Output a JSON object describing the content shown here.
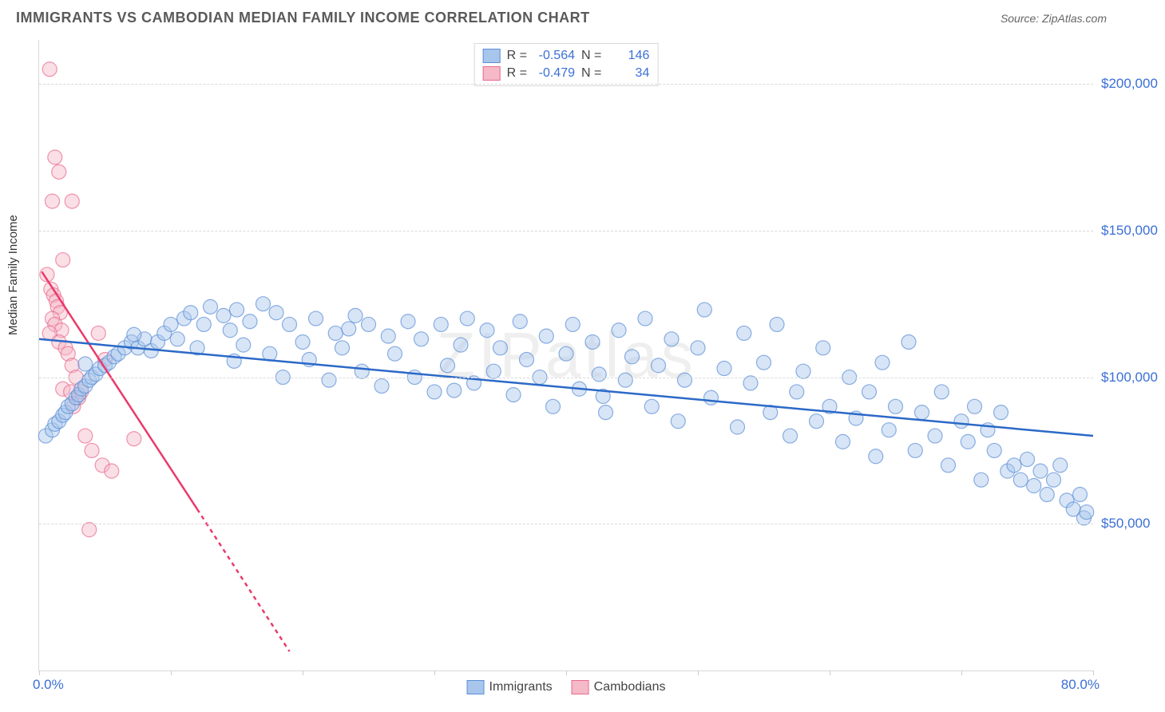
{
  "header": {
    "title": "IMMIGRANTS VS CAMBODIAN MEDIAN FAMILY INCOME CORRELATION CHART",
    "source": "Source: ZipAtlas.com"
  },
  "chart": {
    "type": "scatter",
    "ylabel": "Median Family Income",
    "watermark": "ZIPatlas",
    "background_color": "#ffffff",
    "grid_color": "#d8d8d8",
    "grid_dash": "4,4",
    "axis_color": "#d8d8d8",
    "xlim": [
      0,
      80
    ],
    "ylim": [
      0,
      215000
    ],
    "xtick_labels": {
      "left": "0.0%",
      "right": "80.0%"
    },
    "xtick_positions": [
      0,
      10,
      20,
      30,
      40,
      50,
      60,
      70,
      80
    ],
    "ytick_values": [
      50000,
      100000,
      150000,
      200000
    ],
    "ytick_labels": [
      "$50,000",
      "$100,000",
      "$150,000",
      "$200,000"
    ],
    "ytick_label_color": "#3b6fd6",
    "xtick_label_color": "#3b6fd6",
    "label_fontsize": 15,
    "tick_fontsize": 17,
    "title_fontsize": 18,
    "marker_radius": 9,
    "marker_opacity": 0.45,
    "marker_stroke_opacity": 0.7,
    "line_width": 2.5
  },
  "series": {
    "immigrants": {
      "label": "Immigrants",
      "color_fill": "#a8c5ec",
      "color_stroke": "#5b8fd6",
      "line_color": "#2b69c7",
      "r_label": "R =",
      "r_value": "-0.564",
      "n_label": "N =",
      "n_value": "146",
      "trend": {
        "x1": 0,
        "y1": 113000,
        "x2": 80,
        "y2": 80000
      },
      "points": [
        [
          0.5,
          80000
        ],
        [
          1,
          82000
        ],
        [
          1.2,
          84000
        ],
        [
          1.5,
          85000
        ],
        [
          1.8,
          87000
        ],
        [
          2,
          88000
        ],
        [
          2.2,
          90000
        ],
        [
          2.5,
          91000
        ],
        [
          2.8,
          93000
        ],
        [
          3,
          94000
        ],
        [
          3.2,
          96000
        ],
        [
          3.5,
          97000
        ],
        [
          3.8,
          99000
        ],
        [
          4,
          100000
        ],
        [
          4.3,
          101000
        ],
        [
          4.6,
          103000
        ],
        [
          5,
          104000
        ],
        [
          5.3,
          105000
        ],
        [
          5.7,
          107000
        ],
        [
          6,
          108000
        ],
        [
          6.5,
          110000
        ],
        [
          7,
          112000
        ],
        [
          7.5,
          110000
        ],
        [
          8,
          113000
        ],
        [
          8.5,
          109000
        ],
        [
          9,
          112000
        ],
        [
          9.5,
          115000
        ],
        [
          10,
          118000
        ],
        [
          10.5,
          113000
        ],
        [
          11,
          120000
        ],
        [
          11.5,
          122000
        ],
        [
          12,
          110000
        ],
        [
          12.5,
          118000
        ],
        [
          13,
          124000
        ],
        [
          14,
          121000
        ],
        [
          14.5,
          116000
        ],
        [
          15,
          123000
        ],
        [
          15.5,
          111000
        ],
        [
          16,
          119000
        ],
        [
          17,
          125000
        ],
        [
          17.5,
          108000
        ],
        [
          18,
          122000
        ],
        [
          18.5,
          100000
        ],
        [
          19,
          118000
        ],
        [
          20,
          112000
        ],
        [
          20.5,
          106000
        ],
        [
          21,
          120000
        ],
        [
          22,
          99000
        ],
        [
          22.5,
          115000
        ],
        [
          23,
          110000
        ],
        [
          24,
          121000
        ],
        [
          24.5,
          102000
        ],
        [
          25,
          118000
        ],
        [
          26,
          97000
        ],
        [
          26.5,
          114000
        ],
        [
          27,
          108000
        ],
        [
          28,
          119000
        ],
        [
          28.5,
          100000
        ],
        [
          29,
          113000
        ],
        [
          30,
          95000
        ],
        [
          30.5,
          118000
        ],
        [
          31,
          104000
        ],
        [
          32,
          111000
        ],
        [
          32.5,
          120000
        ],
        [
          33,
          98000
        ],
        [
          34,
          116000
        ],
        [
          34.5,
          102000
        ],
        [
          35,
          110000
        ],
        [
          36,
          94000
        ],
        [
          36.5,
          119000
        ],
        [
          37,
          106000
        ],
        [
          38,
          100000
        ],
        [
          38.5,
          114000
        ],
        [
          39,
          90000
        ],
        [
          40,
          108000
        ],
        [
          40.5,
          118000
        ],
        [
          41,
          96000
        ],
        [
          42,
          112000
        ],
        [
          42.5,
          101000
        ],
        [
          43,
          88000
        ],
        [
          44,
          116000
        ],
        [
          44.5,
          99000
        ],
        [
          45,
          107000
        ],
        [
          46,
          120000
        ],
        [
          46.5,
          90000
        ],
        [
          47,
          104000
        ],
        [
          48,
          113000
        ],
        [
          48.5,
          85000
        ],
        [
          49,
          99000
        ],
        [
          50,
          110000
        ],
        [
          50.5,
          123000
        ],
        [
          51,
          93000
        ],
        [
          52,
          103000
        ],
        [
          53,
          83000
        ],
        [
          53.5,
          115000
        ],
        [
          54,
          98000
        ],
        [
          55,
          105000
        ],
        [
          55.5,
          88000
        ],
        [
          56,
          118000
        ],
        [
          57,
          80000
        ],
        [
          57.5,
          95000
        ],
        [
          58,
          102000
        ],
        [
          59,
          85000
        ],
        [
          59.5,
          110000
        ],
        [
          60,
          90000
        ],
        [
          61,
          78000
        ],
        [
          61.5,
          100000
        ],
        [
          62,
          86000
        ],
        [
          63,
          95000
        ],
        [
          63.5,
          73000
        ],
        [
          64,
          105000
        ],
        [
          64.5,
          82000
        ],
        [
          65,
          90000
        ],
        [
          66,
          112000
        ],
        [
          66.5,
          75000
        ],
        [
          67,
          88000
        ],
        [
          68,
          80000
        ],
        [
          68.5,
          95000
        ],
        [
          69,
          70000
        ],
        [
          70,
          85000
        ],
        [
          70.5,
          78000
        ],
        [
          71,
          90000
        ],
        [
          71.5,
          65000
        ],
        [
          72,
          82000
        ],
        [
          72.5,
          75000
        ],
        [
          73,
          88000
        ],
        [
          73.5,
          68000
        ],
        [
          74,
          70000
        ],
        [
          74.5,
          65000
        ],
        [
          75,
          72000
        ],
        [
          75.5,
          63000
        ],
        [
          76,
          68000
        ],
        [
          76.5,
          60000
        ],
        [
          77,
          65000
        ],
        [
          77.5,
          70000
        ],
        [
          78,
          58000
        ],
        [
          78.5,
          55000
        ],
        [
          79,
          60000
        ],
        [
          79.3,
          52000
        ],
        [
          79.5,
          54000
        ],
        [
          3.5,
          104500
        ],
        [
          7.2,
          114500
        ],
        [
          14.8,
          105500
        ],
        [
          23.5,
          116500
        ],
        [
          31.5,
          95500
        ],
        [
          42.8,
          93500
        ]
      ]
    },
    "cambodians": {
      "label": "Cambodians",
      "color_fill": "#f5b9c8",
      "color_stroke": "#ea6a8c",
      "line_color": "#ea3a6a",
      "r_label": "R =",
      "r_value": "-0.479",
      "n_label": "N =",
      "n_value": "34",
      "trend_solid": {
        "x1": 0.2,
        "y1": 136000,
        "x2": 12,
        "y2": 55000
      },
      "trend_dash": {
        "x1": 12,
        "y1": 55000,
        "x2": 19,
        "y2": 6500
      },
      "points": [
        [
          0.8,
          205000
        ],
        [
          1.2,
          175000
        ],
        [
          1.5,
          170000
        ],
        [
          1,
          160000
        ],
        [
          1.8,
          140000
        ],
        [
          2.5,
          160000
        ],
        [
          0.6,
          135000
        ],
        [
          0.9,
          130000
        ],
        [
          1.1,
          128000
        ],
        [
          1.3,
          126000
        ],
        [
          1.4,
          124000
        ],
        [
          1.6,
          122000
        ],
        [
          1.0,
          120000
        ],
        [
          1.2,
          118000
        ],
        [
          1.7,
          116000
        ],
        [
          0.8,
          115000
        ],
        [
          1.5,
          112000
        ],
        [
          2.0,
          110000
        ],
        [
          2.2,
          108000
        ],
        [
          2.5,
          104000
        ],
        [
          2.8,
          100000
        ],
        [
          1.8,
          96000
        ],
        [
          2.4,
          95000
        ],
        [
          3.0,
          93000
        ],
        [
          2.6,
          90000
        ],
        [
          3.2,
          95000
        ],
        [
          4.5,
          115000
        ],
        [
          3.5,
          80000
        ],
        [
          4.0,
          75000
        ],
        [
          4.8,
          70000
        ],
        [
          5.5,
          68000
        ],
        [
          7.2,
          79000
        ],
        [
          3.8,
          48000
        ],
        [
          5.0,
          106000
        ]
      ]
    }
  }
}
